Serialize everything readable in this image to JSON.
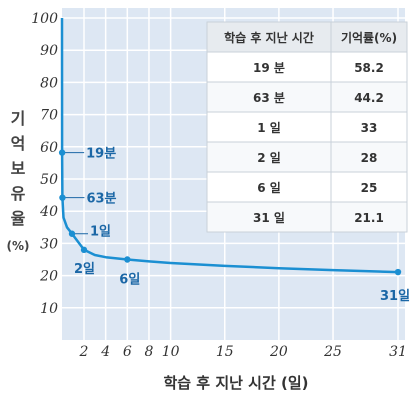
{
  "chart_data": {
    "type": "line",
    "title": "",
    "xlabel": "학습 후 지난 시간 (일)",
    "ylabel_chars": [
      "기",
      "억",
      "보",
      "유",
      "율"
    ],
    "ylabel_unit": "(%)",
    "xlim": [
      0,
      31
    ],
    "ylim": [
      0,
      100
    ],
    "x_ticks": [
      2,
      4,
      6,
      8,
      10,
      15,
      20,
      25,
      31
    ],
    "y_ticks": [
      10,
      20,
      30,
      40,
      50,
      60,
      70,
      80,
      90,
      100
    ],
    "grid": true,
    "curve": {
      "x": [
        0,
        0.0139,
        0.0438,
        0.15,
        0.5,
        1,
        2,
        3,
        4,
        6,
        8,
        10,
        15,
        20,
        25,
        31
      ],
      "y": [
        100,
        58.2,
        44.2,
        38,
        35,
        33,
        28,
        26.4,
        25.7,
        25,
        24.4,
        23.9,
        23,
        22.3,
        21.7,
        21.1
      ]
    },
    "points": [
      {
        "x": 0.0139,
        "y": 58.2,
        "label": "19분"
      },
      {
        "x": 0.0438,
        "y": 44.2,
        "label": "63분"
      },
      {
        "x": 1,
        "y": 33,
        "label": "1일"
      },
      {
        "x": 2,
        "y": 28,
        "label": "2일"
      },
      {
        "x": 6,
        "y": 25,
        "label": "6일"
      },
      {
        "x": 31,
        "y": 21.1,
        "label": "31일"
      }
    ],
    "table": {
      "headers": [
        "학습 후 지난 시간",
        "기억률(%)"
      ],
      "rows": [
        [
          "19 분",
          "58.2"
        ],
        [
          "63 분",
          "44.2"
        ],
        [
          "1 일",
          "33"
        ],
        [
          "2 일",
          "28"
        ],
        [
          "6 일",
          "25"
        ],
        [
          "31 일",
          "21.1"
        ]
      ]
    },
    "colors": {
      "plot_bg": "#dde7f3",
      "grid": "#ffffff",
      "curve": "#1b8fd2",
      "label": "#1b67a6",
      "table_header": "#e7ebef",
      "table_row_alt": "#f7f9fb"
    }
  }
}
